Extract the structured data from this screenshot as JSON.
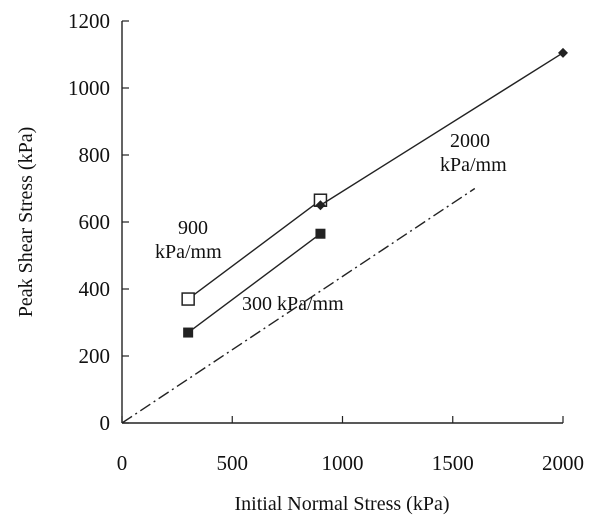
{
  "chart_data": {
    "type": "scatter",
    "title": "",
    "xlabel": "Initial Normal Stress (kPa)",
    "ylabel": "Peak Shear Stress (kPa)",
    "xlim": [
      0,
      2000
    ],
    "ylim": [
      0,
      1200
    ],
    "xticks": [
      0,
      500,
      1000,
      1500,
      2000
    ],
    "yticks": [
      0,
      200,
      400,
      600,
      800,
      1000,
      1200
    ],
    "xtick_labels": [
      "0",
      "500",
      "1000",
      "1500",
      "2000"
    ],
    "ytick_labels": [
      "0",
      "200",
      "400",
      "600",
      "800",
      "1000",
      "1200"
    ],
    "grid": false,
    "legend": "none",
    "series": [
      {
        "marker": "open-square",
        "line": "solid",
        "color": "#222222",
        "x": [
          300,
          900
        ],
        "y": [
          370,
          665
        ]
      },
      {
        "marker": "filled-square",
        "line": "solid",
        "color": "#222222",
        "x": [
          300,
          900
        ],
        "y": [
          270,
          565
        ]
      },
      {
        "marker": "filled-diamond",
        "line": "solid",
        "color": "#222222",
        "x": [
          900,
          2000
        ],
        "y": [
          650,
          1105
        ]
      },
      {
        "marker": "none",
        "line": "dash-dot",
        "color": "#222222",
        "x": [
          0,
          1600
        ],
        "y": [
          0,
          700
        ]
      }
    ],
    "annotations": [
      {
        "lines": [
          "900",
          "kPa/mm"
        ]
      },
      {
        "lines": [
          "300 kPa/mm"
        ]
      },
      {
        "lines": [
          "2000",
          "kPa/mm"
        ]
      }
    ]
  }
}
